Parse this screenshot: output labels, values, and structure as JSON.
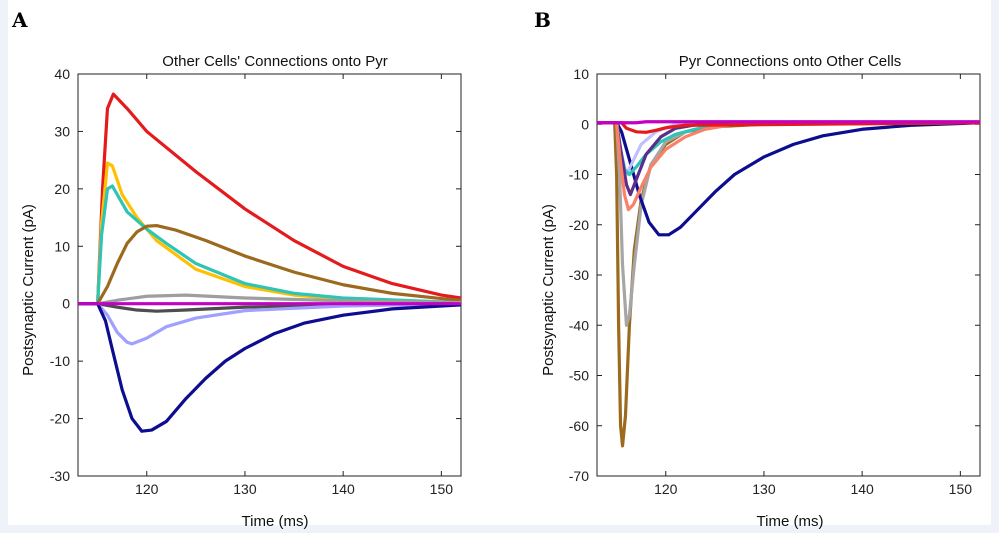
{
  "panels": {
    "a_letter": "A",
    "b_letter": "B"
  },
  "chart_data": [
    {
      "type": "line",
      "title": "Other Cells' Connections onto Pyr",
      "xlabel": "Time (ms)",
      "ylabel": "Postsynaptic Current (pA)",
      "xlim": [
        113,
        152
      ],
      "ylim": [
        -30,
        40
      ],
      "xticks": [
        120,
        130,
        140,
        150
      ],
      "yticks": [
        -30,
        -20,
        -10,
        0,
        10,
        20,
        30,
        40
      ],
      "grid": false,
      "series": [
        {
          "color": "#e41a1c",
          "points": [
            [
              113,
              0
            ],
            [
              115,
              0
            ],
            [
              115.5,
              20
            ],
            [
              116,
              34
            ],
            [
              116.6,
              36.5
            ],
            [
              118,
              34
            ],
            [
              120,
              30
            ],
            [
              125,
              23
            ],
            [
              130,
              16.5
            ],
            [
              135,
              11
            ],
            [
              140,
              6.5
            ],
            [
              145,
              3.5
            ],
            [
              150,
              1.5
            ],
            [
              152,
              1
            ]
          ]
        },
        {
          "color": "#ffc000",
          "points": [
            [
              113,
              0
            ],
            [
              115,
              0
            ],
            [
              115.4,
              14
            ],
            [
              116,
              24.5
            ],
            [
              116.5,
              24
            ],
            [
              117.5,
              19
            ],
            [
              119,
              15
            ],
            [
              121,
              11
            ],
            [
              125,
              6
            ],
            [
              130,
              3
            ],
            [
              135,
              1.5
            ],
            [
              140,
              0.8
            ],
            [
              152,
              0.2
            ]
          ]
        },
        {
          "color": "#2ec4b6",
          "points": [
            [
              113,
              0
            ],
            [
              115,
              0
            ],
            [
              115.4,
              12
            ],
            [
              116,
              20
            ],
            [
              116.5,
              20.5
            ],
            [
              118,
              16
            ],
            [
              120,
              13
            ],
            [
              122,
              10.5
            ],
            [
              125,
              7
            ],
            [
              130,
              3.5
            ],
            [
              135,
              1.8
            ],
            [
              140,
              1
            ],
            [
              152,
              0.2
            ]
          ]
        },
        {
          "color": "#9c6a1e",
          "points": [
            [
              113,
              0
            ],
            [
              115,
              0
            ],
            [
              116,
              3
            ],
            [
              117,
              7
            ],
            [
              118,
              10.5
            ],
            [
              119,
              12.5
            ],
            [
              120,
              13.5
            ],
            [
              121,
              13.6
            ],
            [
              123,
              12.8
            ],
            [
              126,
              11
            ],
            [
              130,
              8.3
            ],
            [
              135,
              5.5
            ],
            [
              140,
              3.3
            ],
            [
              145,
              1.8
            ],
            [
              150,
              0.9
            ],
            [
              152,
              0.6
            ]
          ]
        },
        {
          "color": "#9e9e9e",
          "points": [
            [
              113,
              0
            ],
            [
              115,
              0
            ],
            [
              117,
              0.6
            ],
            [
              120,
              1.3
            ],
            [
              124,
              1.5
            ],
            [
              130,
              1
            ],
            [
              140,
              0.5
            ],
            [
              152,
              0.2
            ]
          ]
        },
        {
          "color": "#4d4d4d",
          "points": [
            [
              113,
              0
            ],
            [
              115,
              0
            ],
            [
              117,
              -0.6
            ],
            [
              119,
              -1.1
            ],
            [
              121,
              -1.3
            ],
            [
              124,
              -1.1
            ],
            [
              130,
              -0.6
            ],
            [
              140,
              -0.2
            ],
            [
              152,
              0
            ]
          ]
        },
        {
          "color": "#a0a0ff",
          "points": [
            [
              113,
              0
            ],
            [
              115,
              0
            ],
            [
              116,
              -2
            ],
            [
              117,
              -5
            ],
            [
              118,
              -6.7
            ],
            [
              118.5,
              -7
            ],
            [
              120,
              -6
            ],
            [
              122,
              -4
            ],
            [
              125,
              -2.5
            ],
            [
              130,
              -1.2
            ],
            [
              140,
              -0.4
            ],
            [
              152,
              0
            ]
          ]
        },
        {
          "color": "#0d0d8f",
          "points": [
            [
              113,
              0
            ],
            [
              115,
              0
            ],
            [
              115.8,
              -3
            ],
            [
              116.5,
              -8
            ],
            [
              117.5,
              -15
            ],
            [
              118.5,
              -20
            ],
            [
              119.5,
              -22.2
            ],
            [
              120.5,
              -22
            ],
            [
              122,
              -20.5
            ],
            [
              124,
              -16.5
            ],
            [
              126,
              -13
            ],
            [
              128,
              -10
            ],
            [
              130,
              -7.8
            ],
            [
              133,
              -5.2
            ],
            [
              136,
              -3.4
            ],
            [
              140,
              -2
            ],
            [
              145,
              -0.9
            ],
            [
              150,
              -0.4
            ],
            [
              152,
              -0.2
            ]
          ]
        },
        {
          "color": "#c400c4",
          "points": [
            [
              113,
              0
            ],
            [
              152,
              0
            ]
          ]
        }
      ]
    },
    {
      "type": "line",
      "title": "Pyr Connections onto Other Cells",
      "xlabel": "Time (ms)",
      "ylabel": "Postsynaptic Current (pA)",
      "xlim": [
        113,
        152
      ],
      "ylim": [
        -70,
        10
      ],
      "xticks": [
        120,
        130,
        140,
        150
      ],
      "yticks": [
        -70,
        -60,
        -50,
        -40,
        -30,
        -20,
        -10,
        0,
        10
      ],
      "grid": false,
      "series": [
        {
          "color": "#9c6a1e",
          "points": [
            [
              113,
              0.3
            ],
            [
              114.8,
              0.3
            ],
            [
              115,
              -10
            ],
            [
              115.2,
              -40
            ],
            [
              115.4,
              -60
            ],
            [
              115.6,
              -64
            ],
            [
              115.9,
              -58
            ],
            [
              116.3,
              -40
            ],
            [
              116.8,
              -25
            ],
            [
              117.5,
              -15
            ],
            [
              118.5,
              -8
            ],
            [
              120,
              -4
            ],
            [
              122,
              -1.5
            ],
            [
              125,
              -0.5
            ],
            [
              130,
              0
            ],
            [
              152,
              0.3
            ]
          ]
        },
        {
          "color": "#a6a6a6",
          "points": [
            [
              113,
              0.3
            ],
            [
              115,
              0.3
            ],
            [
              115.3,
              -10
            ],
            [
              115.6,
              -28
            ],
            [
              116,
              -40
            ],
            [
              116.3,
              -38
            ],
            [
              116.8,
              -28
            ],
            [
              117.5,
              -16
            ],
            [
              118.5,
              -8
            ],
            [
              120,
              -3.5
            ],
            [
              122,
              -1.5
            ],
            [
              125,
              0
            ],
            [
              152,
              0.3
            ]
          ]
        },
        {
          "color": "#0d0d8f",
          "points": [
            [
              113,
              0.3
            ],
            [
              115,
              0.3
            ],
            [
              115.5,
              -1.5
            ],
            [
              116.3,
              -7
            ],
            [
              117.3,
              -14
            ],
            [
              118.3,
              -19.5
            ],
            [
              119.3,
              -22
            ],
            [
              120.3,
              -22
            ],
            [
              121.5,
              -20.5
            ],
            [
              123,
              -17.5
            ],
            [
              125,
              -13.5
            ],
            [
              127,
              -10
            ],
            [
              130,
              -6.5
            ],
            [
              133,
              -4
            ],
            [
              136,
              -2.3
            ],
            [
              140,
              -1
            ],
            [
              145,
              -0.2
            ],
            [
              152,
              0.3
            ]
          ]
        },
        {
          "color": "#c0c0ff",
          "points": [
            [
              113,
              0.3
            ],
            [
              115,
              0.3
            ],
            [
              115.5,
              -6
            ],
            [
              116,
              -10
            ],
            [
              116.5,
              -8
            ],
            [
              117.5,
              -4
            ],
            [
              119,
              -1.5
            ],
            [
              121,
              0
            ],
            [
              152,
              0.3
            ]
          ]
        },
        {
          "color": "#2ec4b6",
          "points": [
            [
              113,
              0.3
            ],
            [
              115,
              0.3
            ],
            [
              115.3,
              -4
            ],
            [
              115.8,
              -9
            ],
            [
              116.3,
              -10
            ],
            [
              117,
              -8.5
            ],
            [
              118,
              -6
            ],
            [
              119.5,
              -3.5
            ],
            [
              121,
              -2
            ],
            [
              123,
              -1
            ],
            [
              126,
              0
            ],
            [
              152,
              0.3
            ]
          ]
        },
        {
          "color": "#5b2d8c",
          "points": [
            [
              113,
              0.3
            ],
            [
              115,
              0.3
            ],
            [
              115.4,
              -5
            ],
            [
              116,
              -12
            ],
            [
              116.4,
              -14
            ],
            [
              117,
              -11
            ],
            [
              118,
              -6
            ],
            [
              119.5,
              -2.5
            ],
            [
              121,
              -0.8
            ],
            [
              124,
              0.2
            ],
            [
              152,
              0.3
            ]
          ]
        },
        {
          "color": "#fa8068",
          "points": [
            [
              113,
              0.3
            ],
            [
              115,
              0.3
            ],
            [
              115.3,
              -6
            ],
            [
              115.8,
              -14
            ],
            [
              116.2,
              -17
            ],
            [
              116.7,
              -16
            ],
            [
              117.5,
              -12.5
            ],
            [
              118.5,
              -8.5
            ],
            [
              120,
              -5
            ],
            [
              122,
              -2.5
            ],
            [
              124,
              -1
            ],
            [
              127,
              0
            ],
            [
              152,
              0.3
            ]
          ]
        },
        {
          "color": "#e41a1c",
          "points": [
            [
              113,
              0.3
            ],
            [
              115.5,
              0.3
            ],
            [
              116,
              -0.8
            ],
            [
              117,
              -1.5
            ],
            [
              118,
              -1.6
            ],
            [
              119,
              -1.2
            ],
            [
              120,
              -0.7
            ],
            [
              122,
              -0.2
            ],
            [
              152,
              0.3
            ]
          ]
        },
        {
          "color": "#c400c4",
          "points": [
            [
              113,
              0.3
            ],
            [
              117,
              0.3
            ],
            [
              118,
              0.5
            ],
            [
              152,
              0.5
            ]
          ]
        }
      ]
    }
  ]
}
